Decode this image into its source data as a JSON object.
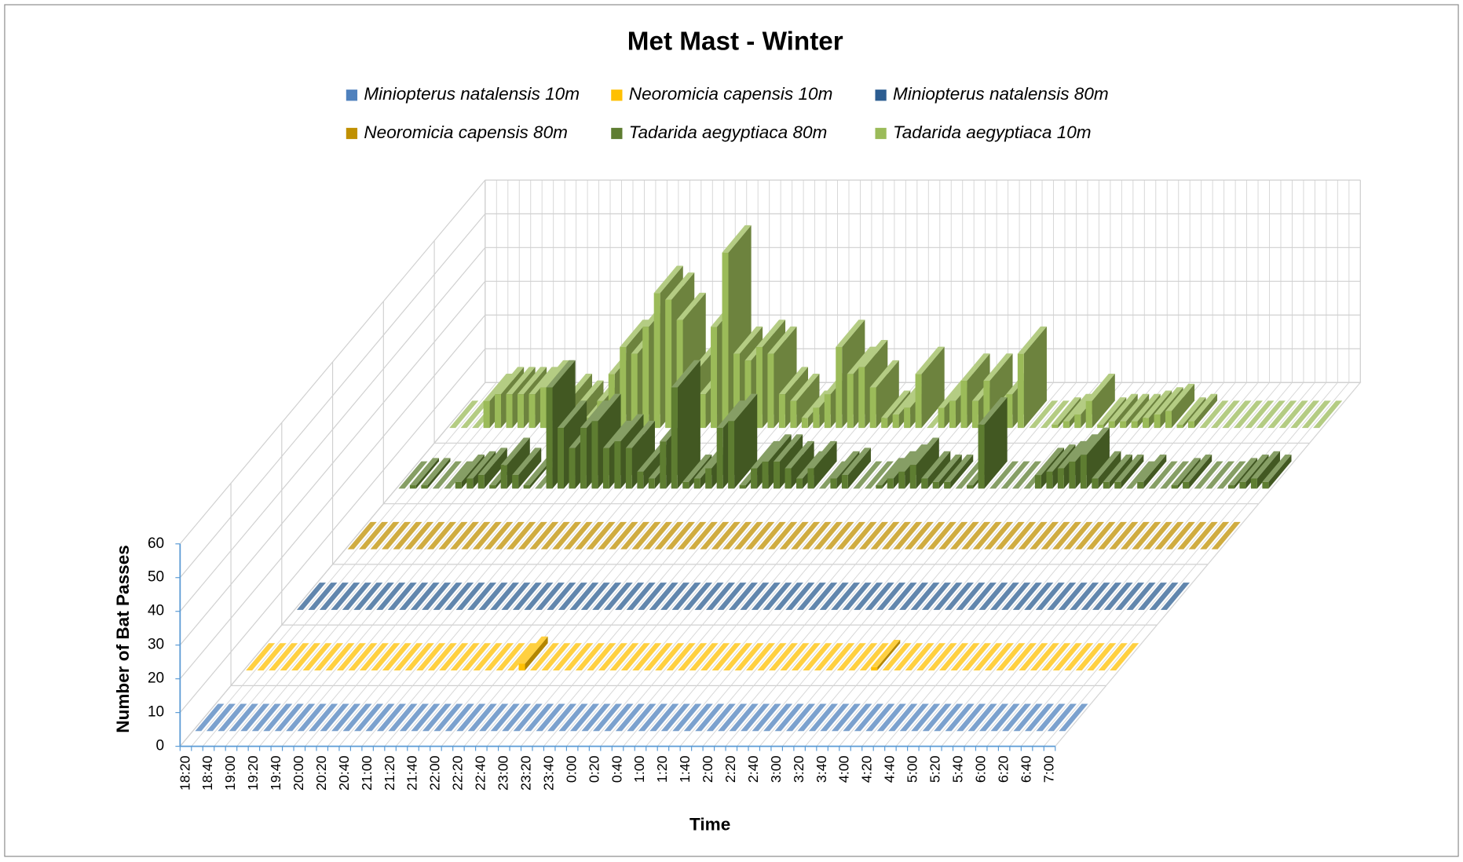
{
  "chart_data": {
    "type": "bar3d",
    "title": "Met Mast - Winter",
    "xlabel": "Time",
    "ylabel": "Number of Bat Passes",
    "categories": [
      "18:20",
      null,
      "18:40",
      null,
      "19:00",
      null,
      "19:20",
      null,
      "19:40",
      null,
      "20:00",
      null,
      "20:20",
      null,
      "20:40",
      null,
      "21:00",
      null,
      "21:20",
      null,
      "21:40",
      null,
      "22:00",
      null,
      "22:20",
      null,
      "22:40",
      null,
      "23:00",
      null,
      "23:20",
      null,
      "23:40",
      null,
      "0:00",
      null,
      "0:20",
      null,
      "0:40",
      null,
      "1:00",
      null,
      "1:20",
      null,
      "1:40",
      null,
      "2:00",
      null,
      "2:20",
      null,
      "2:40",
      null,
      "3:00",
      null,
      "3:20",
      null,
      "3:40",
      null,
      "4:00",
      null,
      "4:20",
      null,
      "4:40",
      null,
      "5:00",
      null,
      "5:20",
      null,
      "5:40",
      null,
      "6:00",
      null,
      "6:20",
      null,
      "6:40",
      null,
      "7:00"
    ],
    "series": [
      {
        "name": "Miniopterus natalensis 10m",
        "color": "#4f81bd",
        "values": [
          0,
          0,
          0,
          0,
          0,
          0,
          0,
          0,
          0,
          0,
          0,
          0,
          0,
          0,
          0,
          0,
          0,
          0,
          0,
          0,
          0,
          0,
          0,
          0,
          0,
          0,
          0,
          0,
          0,
          0,
          0,
          0,
          0,
          0,
          0,
          0,
          0,
          0,
          0,
          0,
          0,
          0,
          0,
          0,
          0,
          0,
          0,
          0,
          0,
          0,
          0,
          0,
          0,
          0,
          0,
          0,
          0,
          0,
          0,
          0,
          0,
          0,
          0,
          0,
          0,
          0,
          0,
          0,
          0,
          0,
          0,
          0,
          0,
          0,
          0,
          0,
          0
        ]
      },
      {
        "name": "Neoromicia capensis 10m",
        "color": "#ffc000",
        "values": [
          0,
          0,
          0,
          0,
          0,
          0,
          0,
          0,
          0,
          0,
          0,
          0,
          0,
          0,
          0,
          0,
          0,
          0,
          0,
          0,
          0,
          0,
          0,
          0,
          2,
          0,
          0,
          0,
          0,
          0,
          0,
          0,
          0,
          0,
          0,
          0,
          0,
          0,
          0,
          0,
          0,
          0,
          0,
          0,
          0,
          0,
          0,
          0,
          0,
          0,
          0,
          0,
          0,
          0,
          0,
          1,
          0,
          0,
          0,
          0,
          0,
          0,
          0,
          0,
          0,
          0,
          0,
          0,
          0,
          0,
          0,
          0,
          0,
          0,
          0,
          0,
          0
        ]
      },
      {
        "name": "Miniopterus natalensis 80m",
        "color": "#2c5d91",
        "values": [
          0,
          0,
          0,
          0,
          0,
          0,
          0,
          0,
          0,
          0,
          0,
          0,
          0,
          0,
          0,
          0,
          0,
          0,
          0,
          0,
          0,
          0,
          0,
          0,
          0,
          0,
          0,
          0,
          0,
          0,
          0,
          0,
          0,
          0,
          0,
          0,
          0,
          0,
          0,
          0,
          0,
          0,
          0,
          0,
          0,
          0,
          0,
          0,
          0,
          0,
          0,
          0,
          0,
          0,
          0,
          0,
          0,
          0,
          0,
          0,
          0,
          0,
          0,
          0,
          0,
          0,
          0,
          0,
          0,
          0,
          0,
          0,
          0,
          0,
          0,
          0,
          0
        ]
      },
      {
        "name": "Neoromicia capensis 80m",
        "color": "#c09000",
        "values": [
          0,
          0,
          0,
          0,
          0,
          0,
          0,
          0,
          0,
          0,
          0,
          0,
          0,
          0,
          0,
          0,
          0,
          0,
          0,
          0,
          0,
          0,
          0,
          0,
          0,
          0,
          0,
          0,
          0,
          0,
          0,
          0,
          0,
          0,
          0,
          0,
          0,
          0,
          0,
          0,
          0,
          0,
          0,
          0,
          0,
          0,
          0,
          0,
          0,
          0,
          0,
          0,
          0,
          0,
          0,
          0,
          0,
          0,
          0,
          0,
          0,
          0,
          0,
          0,
          0,
          0,
          0,
          0,
          0,
          0,
          0,
          0,
          0,
          0,
          0,
          0,
          0
        ]
      },
      {
        "name": "Tadarida aegyptiaca 80m",
        "color": "#5e7d31",
        "values": [
          0,
          1,
          1,
          0,
          0,
          2,
          3,
          4,
          1,
          7,
          4,
          1,
          0,
          30,
          18,
          12,
          18,
          20,
          12,
          14,
          12,
          5,
          3,
          14,
          30,
          2,
          3,
          6,
          18,
          20,
          1,
          6,
          8,
          8,
          6,
          3,
          6,
          0,
          3,
          4,
          0,
          0,
          1,
          3,
          5,
          7,
          3,
          2,
          2,
          0,
          1,
          19,
          0,
          0,
          0,
          0,
          4,
          5,
          6,
          8,
          10,
          3,
          2,
          2,
          0,
          2,
          0,
          0,
          1,
          2,
          0,
          0,
          0,
          1,
          2,
          3,
          2
        ]
      },
      {
        "name": "Tadarida aegyptiaca 10m",
        "color": "#9bbb59",
        "values": [
          0,
          0,
          0,
          8,
          10,
          10,
          10,
          10,
          12,
          0,
          8,
          6,
          3,
          8,
          16,
          24,
          22,
          30,
          40,
          38,
          32,
          16,
          10,
          30,
          52,
          22,
          20,
          24,
          22,
          10,
          8,
          3,
          6,
          10,
          24,
          16,
          18,
          12,
          3,
          4,
          6,
          16,
          0,
          6,
          8,
          14,
          8,
          14,
          6,
          10,
          22,
          0,
          0,
          1,
          2,
          4,
          8,
          1,
          2,
          2,
          2,
          3,
          4,
          5,
          1,
          2,
          0,
          0,
          0,
          0,
          0,
          0,
          0,
          0,
          0,
          0,
          0
        ]
      }
    ],
    "ylim": [
      0,
      60
    ],
    "yticks": [
      0,
      10,
      20,
      30,
      40,
      50,
      60
    ],
    "grid": true,
    "legend": "top"
  }
}
